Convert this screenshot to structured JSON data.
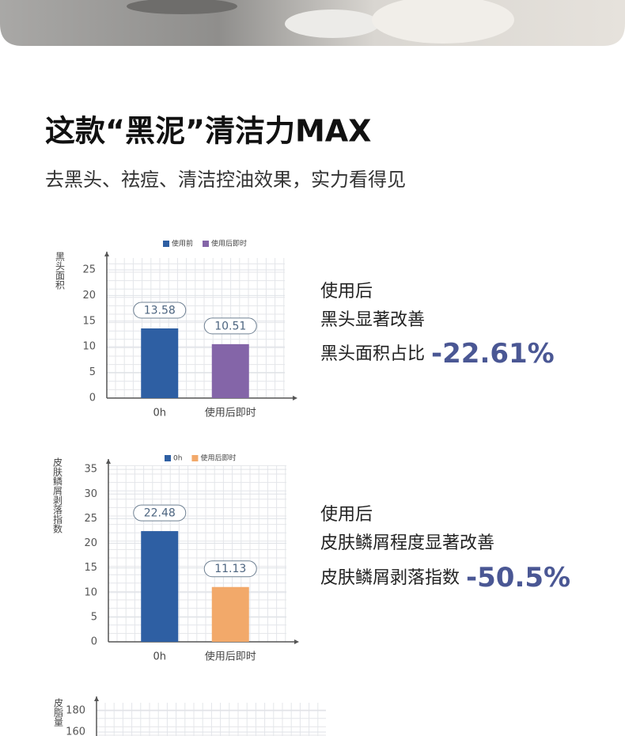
{
  "header": {
    "title": "这款“黑泥”清洁力MAX",
    "subtitle": "去黑头、祛痘、清洁控油效果，实力看得见"
  },
  "claims": [
    {
      "line1": "使用后",
      "line2": "黑头显著改善",
      "metric": "黑头面积占比",
      "stat": "-22.61%"
    },
    {
      "line1": "使用后",
      "line2": "皮肤鳞屑程度显著改善",
      "metric": "皮肤鳞屑剥落指数",
      "stat": "-50.5%"
    }
  ],
  "chart_data": [
    {
      "type": "bar",
      "ylabel": "黑头面积",
      "categories": [
        "0h",
        "使用后即时"
      ],
      "series": [
        {
          "name": "使用前",
          "color": "#2e5fa3",
          "values": [
            13.58,
            null
          ]
        },
        {
          "name": "使用后即时",
          "color": "#8465a8",
          "values": [
            null,
            10.51
          ]
        }
      ],
      "ylim": [
        0,
        27
      ],
      "yticks": [
        0,
        5,
        10,
        15,
        20,
        25
      ],
      "grid": true
    },
    {
      "type": "bar",
      "ylabel": "皮肤鳞屑剥落指数",
      "categories": [
        "0h",
        "使用后即时"
      ],
      "series": [
        {
          "name": "0h",
          "color": "#2e5fa3",
          "values": [
            22.48,
            null
          ]
        },
        {
          "name": "使用后即时",
          "color": "#f2a96a",
          "values": [
            null,
            11.13
          ]
        }
      ],
      "ylim": [
        0,
        36.5
      ],
      "yticks": [
        0,
        5,
        10,
        15,
        20,
        25,
        30,
        35
      ],
      "grid": true
    },
    {
      "type": "bar",
      "ylabel": "皮脂量",
      "ylim": [
        0,
        190
      ],
      "yticks": [
        160,
        180
      ],
      "grid": true
    }
  ]
}
